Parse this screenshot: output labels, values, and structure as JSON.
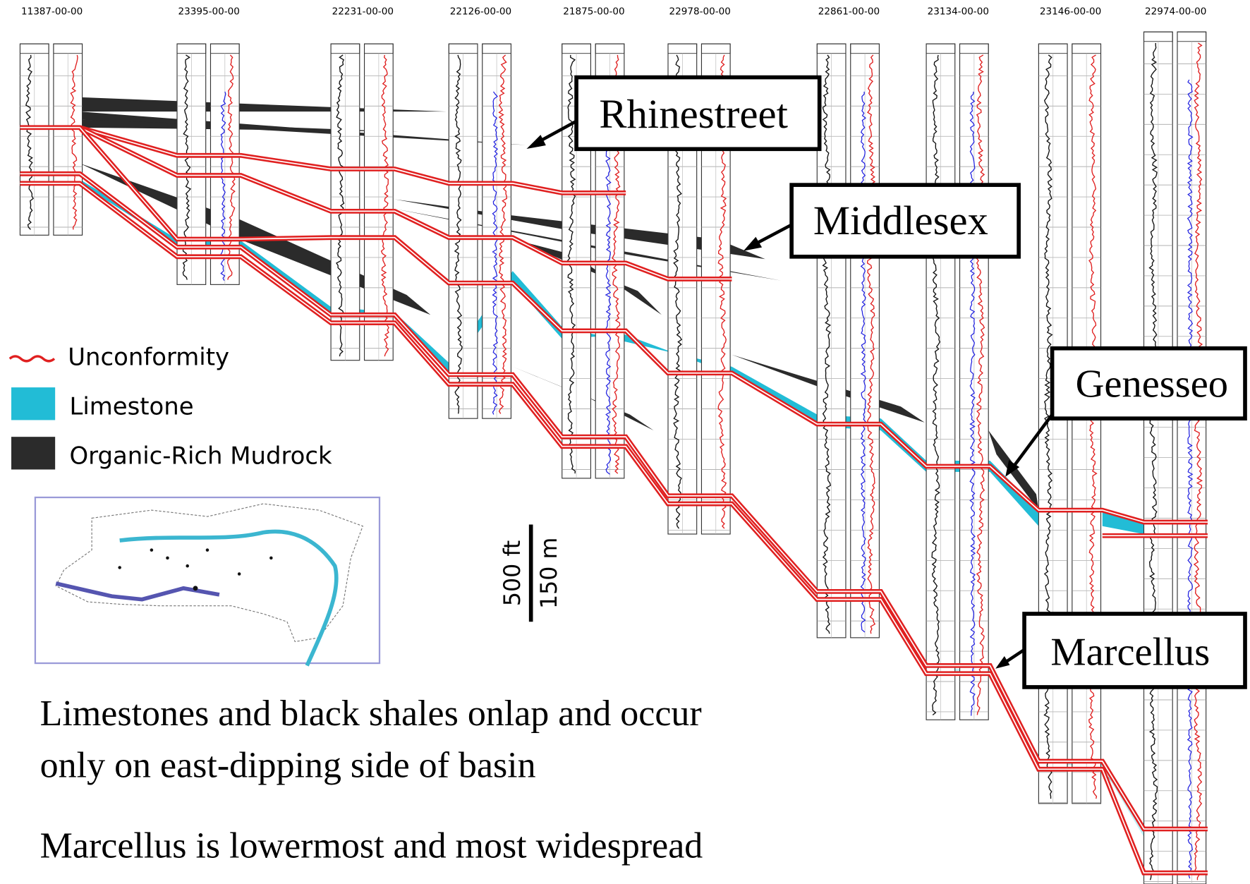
{
  "wells": [
    "11387-00-00",
    "23395-00-00",
    "22231-00-00",
    "22126-00-00",
    "21875-00-00",
    "22978-00-00",
    "22861-00-00",
    "23134-00-00",
    "23146-00-00",
    "22974-00-00"
  ],
  "formations": [
    "Rhinestreet",
    "Middlesex",
    "Genesseo",
    "Marcellus"
  ],
  "legend": [
    "Unconformity",
    "Limestone",
    "Organic-Rich Mudrock"
  ],
  "scale": [
    "500 ft",
    "150 m"
  ],
  "notes": [
    "Limestones and black shales onlap and occur",
    "only on east-dipping side of basin",
    "Marcellus is lowermost and most widespread"
  ]
}
